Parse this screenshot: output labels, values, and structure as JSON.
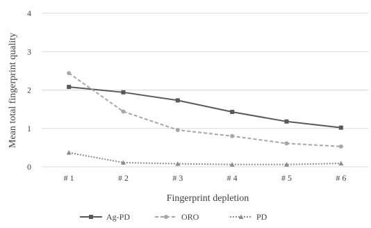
{
  "chart_data": {
    "type": "line",
    "categories": [
      "# 1",
      "# 2",
      "# 3",
      "# 4",
      "# 5",
      "# 6"
    ],
    "series": [
      {
        "name": "Ag-PD",
        "values": [
          2.08,
          1.94,
          1.73,
          1.43,
          1.18,
          1.02
        ],
        "color": "#595959",
        "dash": "solid",
        "marker": "square"
      },
      {
        "name": "ORO",
        "values": [
          2.44,
          1.44,
          0.96,
          0.8,
          0.61,
          0.53
        ],
        "color": "#a6a6a6",
        "dash": "dashed",
        "marker": "circle"
      },
      {
        "name": "PD",
        "values": [
          0.37,
          0.11,
          0.08,
          0.06,
          0.06,
          0.09
        ],
        "color": "#8c8c8c",
        "dash": "dotted",
        "marker": "triangle"
      }
    ],
    "yticks": [
      "0",
      "1",
      "2",
      "3",
      "4"
    ],
    "ylim": [
      0,
      4
    ],
    "xlabel": "Fingerprint depletion",
    "ylabel": "Mean total fingerprint quality",
    "grid": true,
    "legend_position": "bottom"
  }
}
